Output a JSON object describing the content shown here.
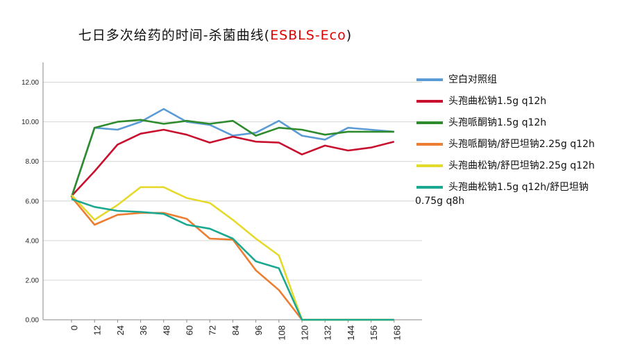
{
  "chart_data": {
    "type": "line",
    "title_main": "七日多次给药的时间-杀菌曲线(",
    "title_highlight": "ESBLS-Eco",
    "title_end": ")",
    "x": [
      0,
      12,
      24,
      36,
      48,
      60,
      72,
      84,
      96,
      108,
      120,
      132,
      144,
      156,
      168
    ],
    "ylim": [
      0,
      13
    ],
    "yticks": [
      "0.00",
      "2.00",
      "4.00",
      "6.00",
      "8.00",
      "10.00",
      "12.00"
    ],
    "grid": "horizontal",
    "legend_position": "right",
    "series": [
      {
        "name": "空白对照组",
        "color": "#5b9bd5",
        "values": [
          6.2,
          9.7,
          9.6,
          10.0,
          10.65,
          10.0,
          9.85,
          9.3,
          9.45,
          10.05,
          9.3,
          9.1,
          9.7,
          9.6,
          9.5
        ]
      },
      {
        "name": "头孢曲松钠1.5g q12h",
        "color": "#c8102e",
        "values": [
          6.25,
          7.5,
          8.85,
          9.4,
          9.6,
          9.35,
          8.95,
          9.25,
          9.0,
          8.95,
          8.35,
          8.8,
          8.55,
          8.7,
          9.0
        ]
      },
      {
        "name": "头孢哌酮钠1.5g q12h",
        "color": "#2e8b2e",
        "values": [
          6.2,
          9.7,
          10.0,
          10.1,
          9.9,
          10.05,
          9.9,
          10.05,
          9.3,
          9.7,
          9.6,
          9.35,
          9.5,
          9.5,
          9.5
        ]
      },
      {
        "name": "头孢哌酮钠/舒巴坦钠2.25g q12h",
        "color": "#ed7d31",
        "values": [
          6.2,
          4.8,
          5.3,
          5.4,
          5.4,
          5.1,
          4.1,
          4.05,
          2.5,
          1.5,
          0,
          0,
          0,
          0,
          0
        ]
      },
      {
        "name": "头孢曲松钠/舒巴坦钠2.25g q12h",
        "color": "#e5d92b",
        "values": [
          6.3,
          5.05,
          5.8,
          6.7,
          6.7,
          6.15,
          5.9,
          5.05,
          4.1,
          3.25,
          0,
          0,
          0,
          0,
          0
        ]
      },
      {
        "name": "头孢曲松钠1.5g q12h/舒巴坦钠\n0.75g q8h",
        "color": "#1aa890",
        "values": [
          6.1,
          5.7,
          5.5,
          5.45,
          5.35,
          4.8,
          4.6,
          4.1,
          2.95,
          2.6,
          0,
          0,
          0,
          0,
          0
        ]
      }
    ]
  }
}
